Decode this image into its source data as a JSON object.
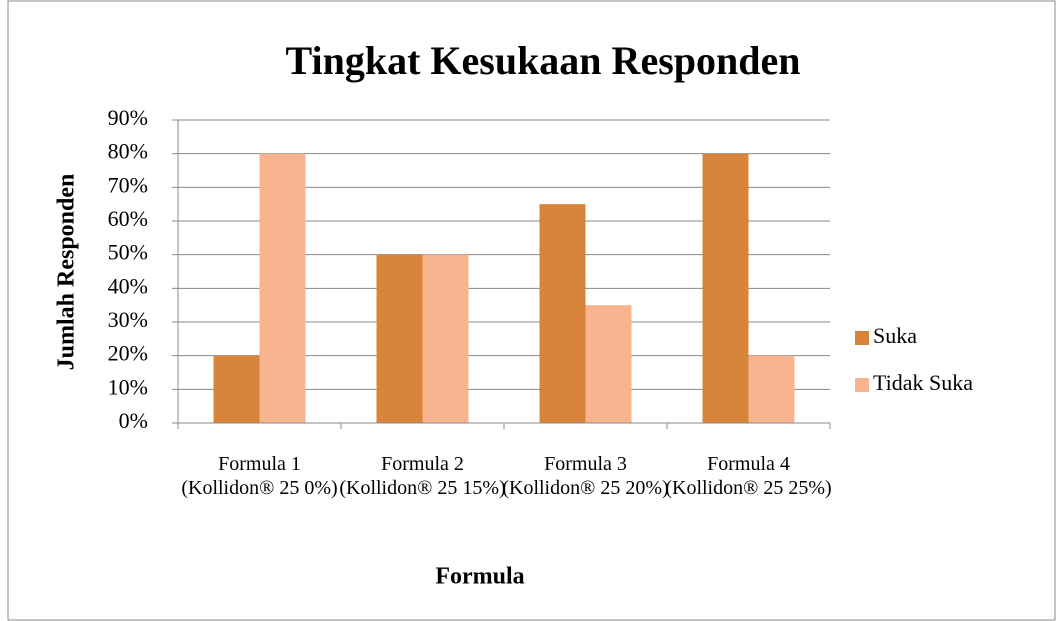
{
  "chart_data": {
    "type": "bar",
    "title": "Tingkat Kesukaan Responden",
    "x_label": "Formula",
    "y_label": "Jumlah Responden",
    "categories": [
      "Formula 1 (Kollidon® 25 0%)",
      "Formula 2 (Kollidon® 25 15%)",
      "Formula 3 (Kollidon® 25 20%)",
      "Formula 4 (Kollidon® 25 25%)"
    ],
    "series": [
      {
        "name": "Suka",
        "color": "#d9843b",
        "values": [
          20,
          50,
          65,
          80
        ]
      },
      {
        "name": "Tidak Suka",
        "color": "#f7b48f",
        "values": [
          80,
          50,
          35,
          20
        ]
      }
    ],
    "ylim": [
      0,
      90
    ],
    "yticks": [
      {
        "value": 0,
        "label": "0%"
      },
      {
        "value": 10,
        "label": "10%"
      },
      {
        "value": 20,
        "label": "20%"
      },
      {
        "value": 30,
        "label": "30%"
      },
      {
        "value": 40,
        "label": "40%"
      },
      {
        "value": 50,
        "label": "50%"
      },
      {
        "value": 60,
        "label": "60%"
      },
      {
        "value": 70,
        "label": "70%"
      },
      {
        "value": 80,
        "label": "80%"
      },
      {
        "value": 90,
        "label": "90%"
      }
    ],
    "grid": true,
    "legend": "right"
  }
}
